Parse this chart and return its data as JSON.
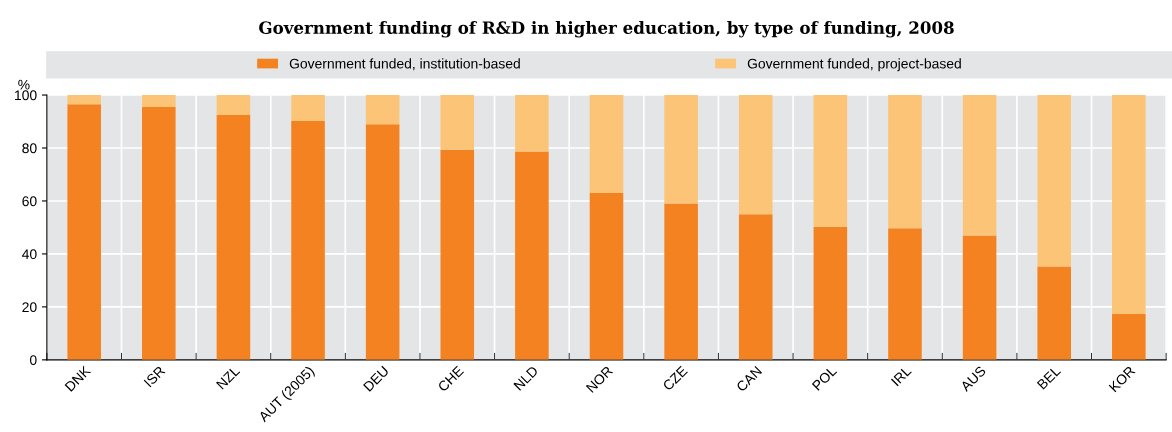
{
  "chart_data": {
    "type": "bar",
    "stacked": true,
    "title": "Government funding of R&D in higher education, by type of funding, 2008",
    "ylabel": "%",
    "categories": [
      "DNK",
      "ISR",
      "NZL",
      "AUT (2005)",
      "DEU",
      "CHE",
      "NLD",
      "NOR",
      "CZE",
      "CAN",
      "POL",
      "IRL",
      "AUS",
      "BEL",
      "KOR"
    ],
    "series": [
      {
        "name": "Government funded, institution-based",
        "color": "#f58220",
        "values": [
          96.5,
          95.5,
          92.5,
          90.2,
          89,
          79.3,
          78.7,
          63,
          59,
          55,
          50.3,
          49.7,
          47,
          35.3,
          17.3
        ]
      },
      {
        "name": "Government funded, project-based",
        "color": "#fbc477",
        "values": [
          3.5,
          4.5,
          7.5,
          9.8,
          11,
          20.7,
          21.3,
          37,
          41,
          45,
          49.7,
          50.3,
          53,
          64.7,
          82.7
        ]
      }
    ],
    "ylim": [
      0,
      100
    ],
    "yticks": [
      0,
      20,
      40,
      60,
      80,
      100
    ],
    "grid": true,
    "legend": "top"
  }
}
